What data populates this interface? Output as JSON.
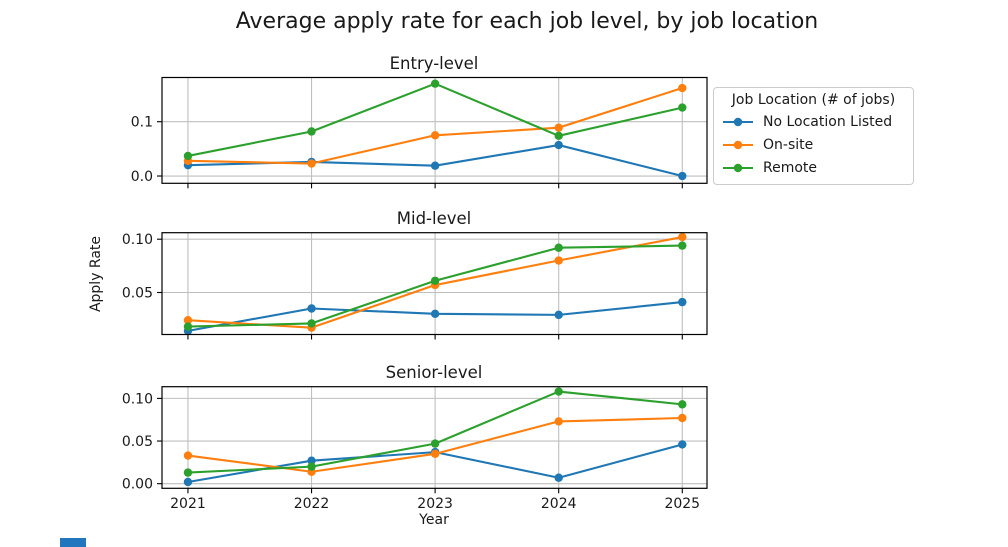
{
  "chart_data": {
    "type": "line",
    "suptitle": "Average apply rate for each job level, by job location",
    "xlabel": "Year",
    "ylabel": "Apply Rate",
    "x": [
      2021,
      2022,
      2023,
      2024,
      2025
    ],
    "xlim": [
      2020.79,
      2025.2
    ],
    "grid": true,
    "legend": {
      "title": "Job Location (# of jobs)",
      "position": "outside upper right",
      "items": [
        {
          "label": "No Location Listed",
          "color": "#1f77b4"
        },
        {
          "label": "On-site",
          "color": "#ff7f0e"
        },
        {
          "label": "Remote",
          "color": "#2ca02c"
        }
      ]
    },
    "subplots": [
      {
        "title": "Entry-level",
        "ylim": [
          -0.0134,
          0.1814
        ],
        "yticks": [
          {
            "value": 0.0,
            "label": "0.0"
          },
          {
            "value": 0.1,
            "label": "0.1"
          }
        ],
        "series": [
          {
            "name": "No Location Listed",
            "color": "#1f77b4",
            "values": [
              0.02,
              0.026,
              0.019,
              0.057,
              0.0
            ]
          },
          {
            "name": "On-site",
            "color": "#ff7f0e",
            "values": [
              0.028,
              0.023,
              0.075,
              0.089,
              0.162
            ]
          },
          {
            "name": "Remote",
            "color": "#2ca02c",
            "values": [
              0.037,
              0.082,
              0.17,
              0.074,
              0.126
            ]
          }
        ]
      },
      {
        "title": "Mid-level",
        "ylim": [
          0.0106,
          0.1061
        ],
        "yticks": [
          {
            "value": 0.05,
            "label": "0.05"
          },
          {
            "value": 0.1,
            "label": "0.10"
          }
        ],
        "series": [
          {
            "name": "No Location Listed",
            "color": "#1f77b4",
            "values": [
              0.014,
              0.035,
              0.03,
              0.029,
              0.041
            ]
          },
          {
            "name": "On-site",
            "color": "#ff7f0e",
            "values": [
              0.024,
              0.017,
              0.057,
              0.08,
              0.102
            ]
          },
          {
            "name": "Remote",
            "color": "#2ca02c",
            "values": [
              0.018,
              0.021,
              0.061,
              0.092,
              0.094
            ]
          }
        ]
      },
      {
        "title": "Senior-level",
        "ylim": [
          -0.0054,
          0.1137
        ],
        "yticks": [
          {
            "value": 0.0,
            "label": "0.00"
          },
          {
            "value": 0.05,
            "label": "0.05"
          },
          {
            "value": 0.1,
            "label": "0.10"
          }
        ],
        "series": [
          {
            "name": "No Location Listed",
            "color": "#1f77b4",
            "values": [
              0.002,
              0.027,
              0.037,
              0.007,
              0.046
            ]
          },
          {
            "name": "On-site",
            "color": "#ff7f0e",
            "values": [
              0.033,
              0.014,
              0.035,
              0.073,
              0.077
            ]
          },
          {
            "name": "Remote",
            "color": "#2ca02c",
            "values": [
              0.013,
              0.02,
              0.047,
              0.108,
              0.093
            ]
          }
        ]
      }
    ],
    "style": {
      "grid_color": "#bfbfbf",
      "spine_color": "#000000",
      "text_color": "#1a1a1a"
    }
  }
}
